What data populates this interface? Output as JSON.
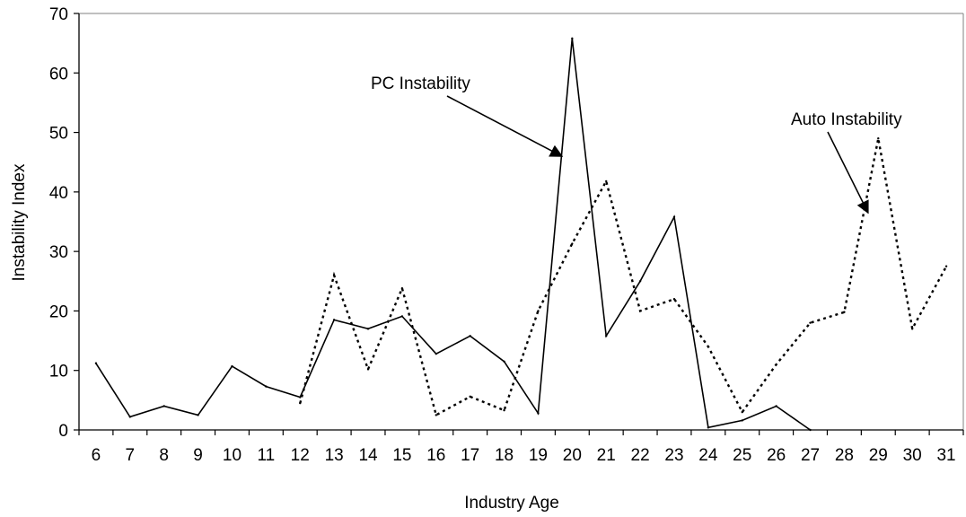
{
  "chart_data": {
    "type": "line",
    "xlabel": "Industry Age",
    "ylabel": "Instability Index",
    "x": [
      6,
      7,
      8,
      9,
      10,
      11,
      12,
      13,
      14,
      15,
      16,
      17,
      18,
      19,
      20,
      21,
      22,
      23,
      24,
      25,
      26,
      27,
      28,
      29,
      30,
      31
    ],
    "ylim": [
      0,
      70
    ],
    "yticks": [
      0,
      10,
      20,
      30,
      40,
      50,
      60,
      70
    ],
    "grid": false,
    "legend": "none",
    "series": [
      {
        "label_key": "pc",
        "style": "solid",
        "x": [
          6,
          7,
          8,
          9,
          10,
          11,
          12,
          13,
          14,
          15,
          16,
          17,
          18,
          19,
          20,
          21,
          22,
          23,
          24,
          25,
          26,
          27
        ],
        "values": [
          11.2,
          2.2,
          4.0,
          2.5,
          10.7,
          7.3,
          5.5,
          18.5,
          17.0,
          19.1,
          12.8,
          15.8,
          11.5,
          2.8,
          65.8,
          15.8,
          25.0,
          35.8,
          0.4,
          1.6,
          4.0,
          0.0
        ]
      },
      {
        "label_key": "auto",
        "style": "dashed",
        "x": [
          12,
          13,
          14,
          15,
          16,
          17,
          18,
          19,
          20,
          21,
          22,
          23,
          24,
          25,
          26,
          27,
          28,
          29,
          30,
          31
        ],
        "values": [
          4.5,
          26.0,
          10.2,
          23.8,
          2.5,
          5.6,
          3.3,
          20.0,
          31.3,
          41.8,
          20.0,
          22.0,
          14.0,
          3.0,
          11.0,
          18.0,
          19.8,
          49.0,
          17.0,
          27.5
        ]
      }
    ],
    "annotations": {
      "pc": {
        "text": "PC Instability",
        "points_to": {
          "x": 19.7,
          "y": 46
        }
      },
      "auto": {
        "text": "Auto Instability",
        "points_to": {
          "x": 28.7,
          "y": 36.5
        }
      }
    }
  },
  "colors": {
    "line": "#000000",
    "axis": "#000000",
    "background": "#ffffff"
  }
}
